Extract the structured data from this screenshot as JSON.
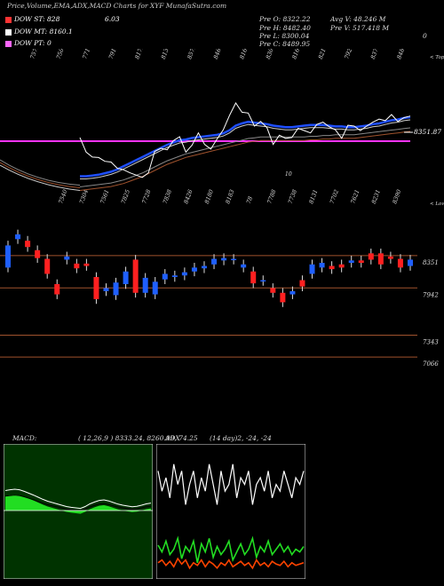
{
  "header": {
    "title": "Price,Volume,EMA,ADX,MACD Charts for XYF MunafaSutra.com",
    "dow_st": "DOW ST: 828",
    "dow_st_value": "6.03",
    "dow_mt": "DOW MT: 8160.1",
    "dow_pt": "DOW PT: 0",
    "pre_o": "Pre   O: 8322.22",
    "pre_h": "Pre   H: 8482.40",
    "pre_l": "Pre   L: 8300.04",
    "pre_c": "Pre   C: 8489.95",
    "avg_v": "Avg V: 48.246  M",
    "pre_v": "Pre   V: 517.418  M",
    "corner_mark": "0"
  },
  "colors": {
    "dow_st": "#ff3333",
    "dow_mt": "#ffffff",
    "dow_pt": "#ff66ff",
    "ema_fast": "#1f4fff",
    "price_line": "#ffffff",
    "magenta_line": "#ff33ff",
    "candle_up": "#1f5fff",
    "candle_down": "#ff2020",
    "level_line": "#a0522d",
    "macd_bg": "#003300",
    "macd_fill": "#22dd22",
    "adx_line": "#ffffff",
    "adx_plus": "#22dd22",
    "adx_minus": "#ff4400"
  },
  "chart_data": [
    {
      "type": "line",
      "name": "price-ema-panel",
      "top_labels": [
        "7573",
        "7505",
        "7711",
        "7917",
        "8172",
        "8130",
        "8572",
        "8463",
        "8166",
        "8305",
        "8164",
        "8217",
        "7928",
        "8371",
        "848"
      ],
      "right_top_label": "< Tope",
      "bottom_labels": [
        "7540",
        "7304",
        "7561",
        "7825",
        "7728",
        "7838",
        "8426",
        "8180",
        "8183",
        "78",
        "7788",
        "7738",
        "8131",
        "7702",
        "7621",
        "8231",
        "8390"
      ],
      "right_bottom_label": "< Lows",
      "last_value_label": "8351.87",
      "mid_label": "10",
      "series": [
        {
          "values": [
            8180,
            7990,
            7925,
            7920,
            7870,
            7860,
            7780,
            7760,
            7720,
            7690,
            7660,
            7720,
            8000,
            8040,
            8020,
            8140,
            8190,
            7990,
            8080,
            8240,
            8090,
            8030,
            8160,
            8280,
            8470,
            8630,
            8510,
            8500,
            8330,
            8390,
            8310,
            8090,
            8210,
            8170,
            8180,
            8300,
            8270,
            8240,
            8350,
            8380,
            8320,
            8280,
            8170,
            8340,
            8330,
            8270,
            8330,
            8380,
            8420,
            8400,
            8480,
            8390,
            8440,
            8460
          ]
        },
        {
          "values": [
            7640,
            7640,
            7650,
            7660,
            7680,
            7700,
            7730,
            7770,
            7810,
            7850,
            7890,
            7930,
            7970,
            8010,
            8050,
            8080,
            8110,
            8120,
            8140,
            8150,
            8160,
            8170,
            8180,
            8200,
            8240,
            8300,
            8330,
            8350,
            8340,
            8330,
            8320,
            8300,
            8290,
            8280,
            8280,
            8290,
            8300,
            8310,
            8310,
            8310,
            8300,
            8290,
            8290,
            8280,
            8280,
            8290,
            8300,
            8320,
            8330,
            8350,
            8370,
            8380,
            8400,
            8410
          ]
        },
        {
          "values": [
            7560,
            7570,
            7580,
            7590,
            7600,
            7610,
            7630,
            7650,
            7680,
            7710,
            7740,
            7780,
            7820,
            7860,
            7900,
            7930,
            7960,
            7990,
            8010,
            8030,
            8050,
            8070,
            8090,
            8110,
            8130,
            8150,
            8170,
            8190,
            8200,
            8210,
            8210,
            8210,
            8210,
            8210,
            8210,
            8210,
            8210,
            8220,
            8220,
            8230,
            8230,
            8240,
            8240,
            8240,
            8240,
            8250,
            8260,
            8270,
            8280,
            8290,
            8300,
            8310,
            8320,
            8330
          ]
        }
      ]
    },
    {
      "type": "bar",
      "name": "candlestick-panel",
      "level_labels": [
        "8351",
        "7942",
        "7343",
        "7066"
      ],
      "candles": [
        {
          "o": 8200,
          "c": 8480,
          "d": false
        },
        {
          "o": 8560,
          "c": 8620,
          "d": false
        },
        {
          "o": 8540,
          "c": 8460,
          "d": true
        },
        {
          "o": 8420,
          "c": 8320,
          "d": true
        },
        {
          "o": 8310,
          "c": 8120,
          "d": true
        },
        {
          "o": 7990,
          "c": 7860,
          "d": true
        },
        {
          "o": 8300,
          "c": 8340,
          "d": false
        },
        {
          "o": 8250,
          "c": 8190,
          "d": true
        },
        {
          "o": 8250,
          "c": 8220,
          "d": true
        },
        {
          "o": 8080,
          "c": 7800,
          "d": true
        },
        {
          "o": 7900,
          "c": 7940,
          "d": false
        },
        {
          "o": 7850,
          "c": 8010,
          "d": false
        },
        {
          "o": 7990,
          "c": 8150,
          "d": false
        },
        {
          "o": 8300,
          "c": 7880,
          "d": true
        },
        {
          "o": 7880,
          "c": 8070,
          "d": false
        },
        {
          "o": 7860,
          "c": 8020,
          "d": false
        },
        {
          "o": 8050,
          "c": 8120,
          "d": false
        },
        {
          "o": 8080,
          "c": 8100,
          "d": false
        },
        {
          "o": 8100,
          "c": 8140,
          "d": false
        },
        {
          "o": 8150,
          "c": 8200,
          "d": false
        },
        {
          "o": 8190,
          "c": 8220,
          "d": false
        },
        {
          "o": 8240,
          "c": 8310,
          "d": false
        },
        {
          "o": 8290,
          "c": 8320,
          "d": false
        },
        {
          "o": 8300,
          "c": 8310,
          "d": false
        },
        {
          "o": 8200,
          "c": 8240,
          "d": false
        },
        {
          "o": 8150,
          "c": 8000,
          "d": true
        },
        {
          "o": 8030,
          "c": 8040,
          "d": false
        },
        {
          "o": 7940,
          "c": 7880,
          "d": true
        },
        {
          "o": 7880,
          "c": 7760,
          "d": true
        },
        {
          "o": 7860,
          "c": 7900,
          "d": false
        },
        {
          "o": 8040,
          "c": 7960,
          "d": true
        },
        {
          "o": 8120,
          "c": 8240,
          "d": false
        },
        {
          "o": 8200,
          "c": 8260,
          "d": false
        },
        {
          "o": 8220,
          "c": 8180,
          "d": true
        },
        {
          "o": 8240,
          "c": 8200,
          "d": true
        },
        {
          "o": 8260,
          "c": 8290,
          "d": false
        },
        {
          "o": 8290,
          "c": 8260,
          "d": true
        },
        {
          "o": 8380,
          "c": 8300,
          "d": true
        },
        {
          "o": 8380,
          "c": 8240,
          "d": true
        },
        {
          "o": 8340,
          "c": 8310,
          "d": true
        },
        {
          "o": 8310,
          "c": 8200,
          "d": true
        },
        {
          "o": 8220,
          "c": 8300,
          "d": false
        }
      ]
    },
    {
      "type": "area",
      "name": "macd-panel",
      "label": "MACD:",
      "params": "( 12,26,9 ) 8333.24,  8260.99,  74.25",
      "values": [
        0.55,
        0.58,
        0.6,
        0.58,
        0.52,
        0.45,
        0.38,
        0.3,
        0.22,
        0.15,
        0.1,
        0.05,
        0.0,
        -0.05,
        -0.08,
        -0.1,
        -0.12,
        -0.05,
        0.05,
        0.12,
        0.18,
        0.2,
        0.16,
        0.1,
        0.04,
        0.0,
        -0.03,
        -0.06,
        -0.04,
        0.0,
        0.05,
        0.08
      ]
    },
    {
      "type": "line",
      "name": "adx-panel",
      "label": "ADX",
      "params": "(14  day)2,  -24,  -24",
      "series": [
        {
          "values": [
            0.2,
            0.35,
            0.25,
            0.4,
            0.15,
            0.3,
            0.2,
            0.45,
            0.3,
            0.2,
            0.4,
            0.25,
            0.35,
            0.15,
            0.3,
            0.45,
            0.2,
            0.35,
            0.3,
            0.15,
            0.4,
            0.25,
            0.3,
            0.2,
            0.45,
            0.3,
            0.25,
            0.35,
            0.2,
            0.4,
            0.3,
            0.35,
            0.2,
            0.3,
            0.4,
            0.25,
            0.3,
            0.2
          ]
        },
        {
          "values": [
            0.75,
            0.8,
            0.72,
            0.82,
            0.78,
            0.7,
            0.85,
            0.76,
            0.8,
            0.72,
            0.88,
            0.74,
            0.8,
            0.7,
            0.84,
            0.76,
            0.82,
            0.78,
            0.72,
            0.86,
            0.8,
            0.74,
            0.82,
            0.78,
            0.7,
            0.84,
            0.76,
            0.8,
            0.72,
            0.82,
            0.78,
            0.74,
            0.8,
            0.76,
            0.82,
            0.78,
            0.8,
            0.76
          ]
        },
        {
          "values": [
            0.88,
            0.86,
            0.9,
            0.87,
            0.91,
            0.85,
            0.89,
            0.86,
            0.92,
            0.88,
            0.9,
            0.86,
            0.91,
            0.87,
            0.89,
            0.92,
            0.88,
            0.9,
            0.86,
            0.91,
            0.89,
            0.87,
            0.9,
            0.88,
            0.92,
            0.86,
            0.9,
            0.88,
            0.91,
            0.87,
            0.89,
            0.9,
            0.87,
            0.91,
            0.88,
            0.9,
            0.89,
            0.88
          ]
        }
      ]
    }
  ]
}
